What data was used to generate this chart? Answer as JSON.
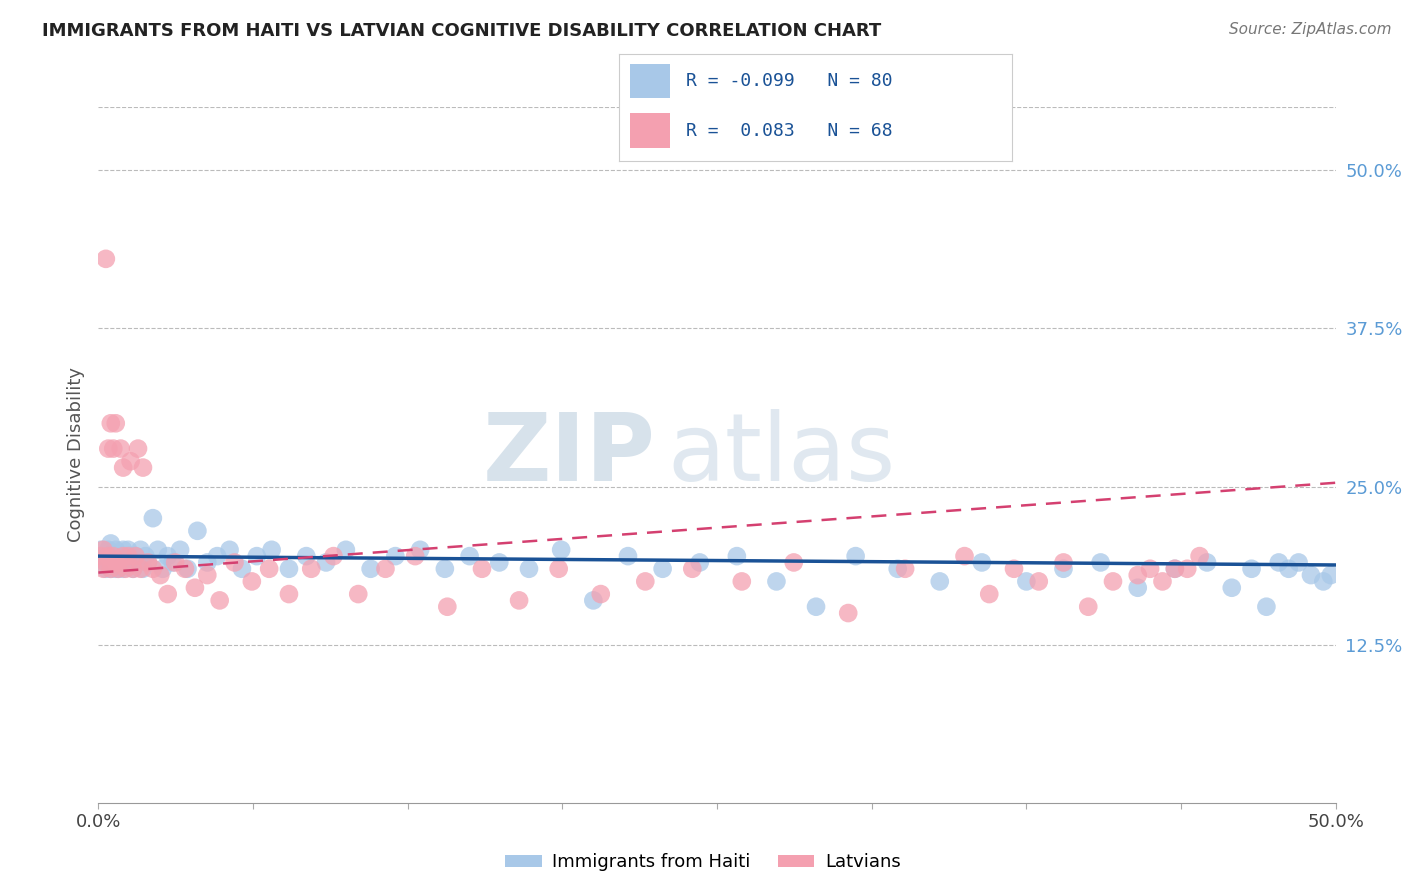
{
  "title": "IMMIGRANTS FROM HAITI VS LATVIAN COGNITIVE DISABILITY CORRELATION CHART",
  "source": "Source: ZipAtlas.com",
  "ylabel": "Cognitive Disability",
  "xlim": [
    0.0,
    0.5
  ],
  "ylim": [
    0.0,
    0.55
  ],
  "xtick_vals": [
    0.0,
    0.0625,
    0.125,
    0.1875,
    0.25,
    0.3125,
    0.375,
    0.4375,
    0.5
  ],
  "xtick_label_vals": [
    0.0,
    0.5
  ],
  "xtick_labels_shown": [
    "0.0%",
    "50.0%"
  ],
  "ytick_vals_right": [
    0.125,
    0.25,
    0.375,
    0.5
  ],
  "ytick_labels_right": [
    "12.5%",
    "25.0%",
    "37.5%",
    "50.0%"
  ],
  "haiti_color": "#a8c8e8",
  "latvian_color": "#f4a0b0",
  "haiti_line_color": "#1a5296",
  "latvian_line_color": "#d44070",
  "R_haiti": -0.099,
  "N_haiti": 80,
  "R_latvian": 0.083,
  "N_latvian": 68,
  "legend_label_haiti": "Immigrants from Haiti",
  "legend_label_latvian": "Latvians",
  "watermark_part1": "ZIP",
  "watermark_part2": "atlas",
  "haiti_scatter_x": [
    0.001,
    0.002,
    0.003,
    0.003,
    0.004,
    0.004,
    0.005,
    0.005,
    0.006,
    0.006,
    0.007,
    0.007,
    0.008,
    0.008,
    0.009,
    0.01,
    0.01,
    0.011,
    0.012,
    0.012,
    0.013,
    0.014,
    0.015,
    0.016,
    0.017,
    0.018,
    0.019,
    0.02,
    0.022,
    0.024,
    0.026,
    0.028,
    0.03,
    0.033,
    0.036,
    0.04,
    0.044,
    0.048,
    0.053,
    0.058,
    0.064,
    0.07,
    0.077,
    0.084,
    0.092,
    0.1,
    0.11,
    0.12,
    0.13,
    0.14,
    0.15,
    0.162,
    0.174,
    0.187,
    0.2,
    0.214,
    0.228,
    0.243,
    0.258,
    0.274,
    0.29,
    0.306,
    0.323,
    0.34,
    0.357,
    0.375,
    0.39,
    0.405,
    0.42,
    0.435,
    0.448,
    0.458,
    0.466,
    0.472,
    0.477,
    0.481,
    0.485,
    0.49,
    0.495,
    0.498
  ],
  "haiti_scatter_y": [
    0.2,
    0.195,
    0.19,
    0.185,
    0.2,
    0.195,
    0.185,
    0.205,
    0.19,
    0.195,
    0.185,
    0.2,
    0.185,
    0.195,
    0.19,
    0.2,
    0.185,
    0.195,
    0.19,
    0.2,
    0.195,
    0.185,
    0.195,
    0.19,
    0.2,
    0.185,
    0.195,
    0.19,
    0.225,
    0.2,
    0.185,
    0.195,
    0.19,
    0.2,
    0.185,
    0.215,
    0.19,
    0.195,
    0.2,
    0.185,
    0.195,
    0.2,
    0.185,
    0.195,
    0.19,
    0.2,
    0.185,
    0.195,
    0.2,
    0.185,
    0.195,
    0.19,
    0.185,
    0.2,
    0.16,
    0.195,
    0.185,
    0.19,
    0.195,
    0.175,
    0.155,
    0.195,
    0.185,
    0.175,
    0.19,
    0.175,
    0.185,
    0.19,
    0.17,
    0.185,
    0.19,
    0.17,
    0.185,
    0.155,
    0.19,
    0.185,
    0.19,
    0.18,
    0.175,
    0.18
  ],
  "latvian_scatter_x": [
    0.001,
    0.002,
    0.002,
    0.003,
    0.003,
    0.004,
    0.004,
    0.005,
    0.005,
    0.006,
    0.006,
    0.007,
    0.007,
    0.008,
    0.008,
    0.009,
    0.01,
    0.01,
    0.011,
    0.012,
    0.013,
    0.014,
    0.015,
    0.016,
    0.017,
    0.018,
    0.02,
    0.022,
    0.025,
    0.028,
    0.031,
    0.035,
    0.039,
    0.044,
    0.049,
    0.055,
    0.062,
    0.069,
    0.077,
    0.086,
    0.095,
    0.105,
    0.116,
    0.128,
    0.141,
    0.155,
    0.17,
    0.186,
    0.203,
    0.221,
    0.24,
    0.26,
    0.281,
    0.303,
    0.326,
    0.35,
    0.36,
    0.37,
    0.38,
    0.39,
    0.4,
    0.41,
    0.42,
    0.425,
    0.43,
    0.435,
    0.44,
    0.445
  ],
  "latvian_scatter_y": [
    0.195,
    0.2,
    0.185,
    0.43,
    0.19,
    0.195,
    0.28,
    0.185,
    0.3,
    0.195,
    0.28,
    0.19,
    0.3,
    0.185,
    0.19,
    0.28,
    0.195,
    0.265,
    0.185,
    0.195,
    0.27,
    0.185,
    0.195,
    0.28,
    0.185,
    0.265,
    0.19,
    0.185,
    0.18,
    0.165,
    0.19,
    0.185,
    0.17,
    0.18,
    0.16,
    0.19,
    0.175,
    0.185,
    0.165,
    0.185,
    0.195,
    0.165,
    0.185,
    0.195,
    0.155,
    0.185,
    0.16,
    0.185,
    0.165,
    0.175,
    0.185,
    0.175,
    0.19,
    0.15,
    0.185,
    0.195,
    0.165,
    0.185,
    0.175,
    0.19,
    0.155,
    0.175,
    0.18,
    0.185,
    0.175,
    0.185,
    0.185,
    0.195
  ],
  "haiti_line_y0": 0.195,
  "haiti_line_y1": 0.188,
  "latvian_line_y0": 0.182,
  "latvian_line_y1": 0.253
}
